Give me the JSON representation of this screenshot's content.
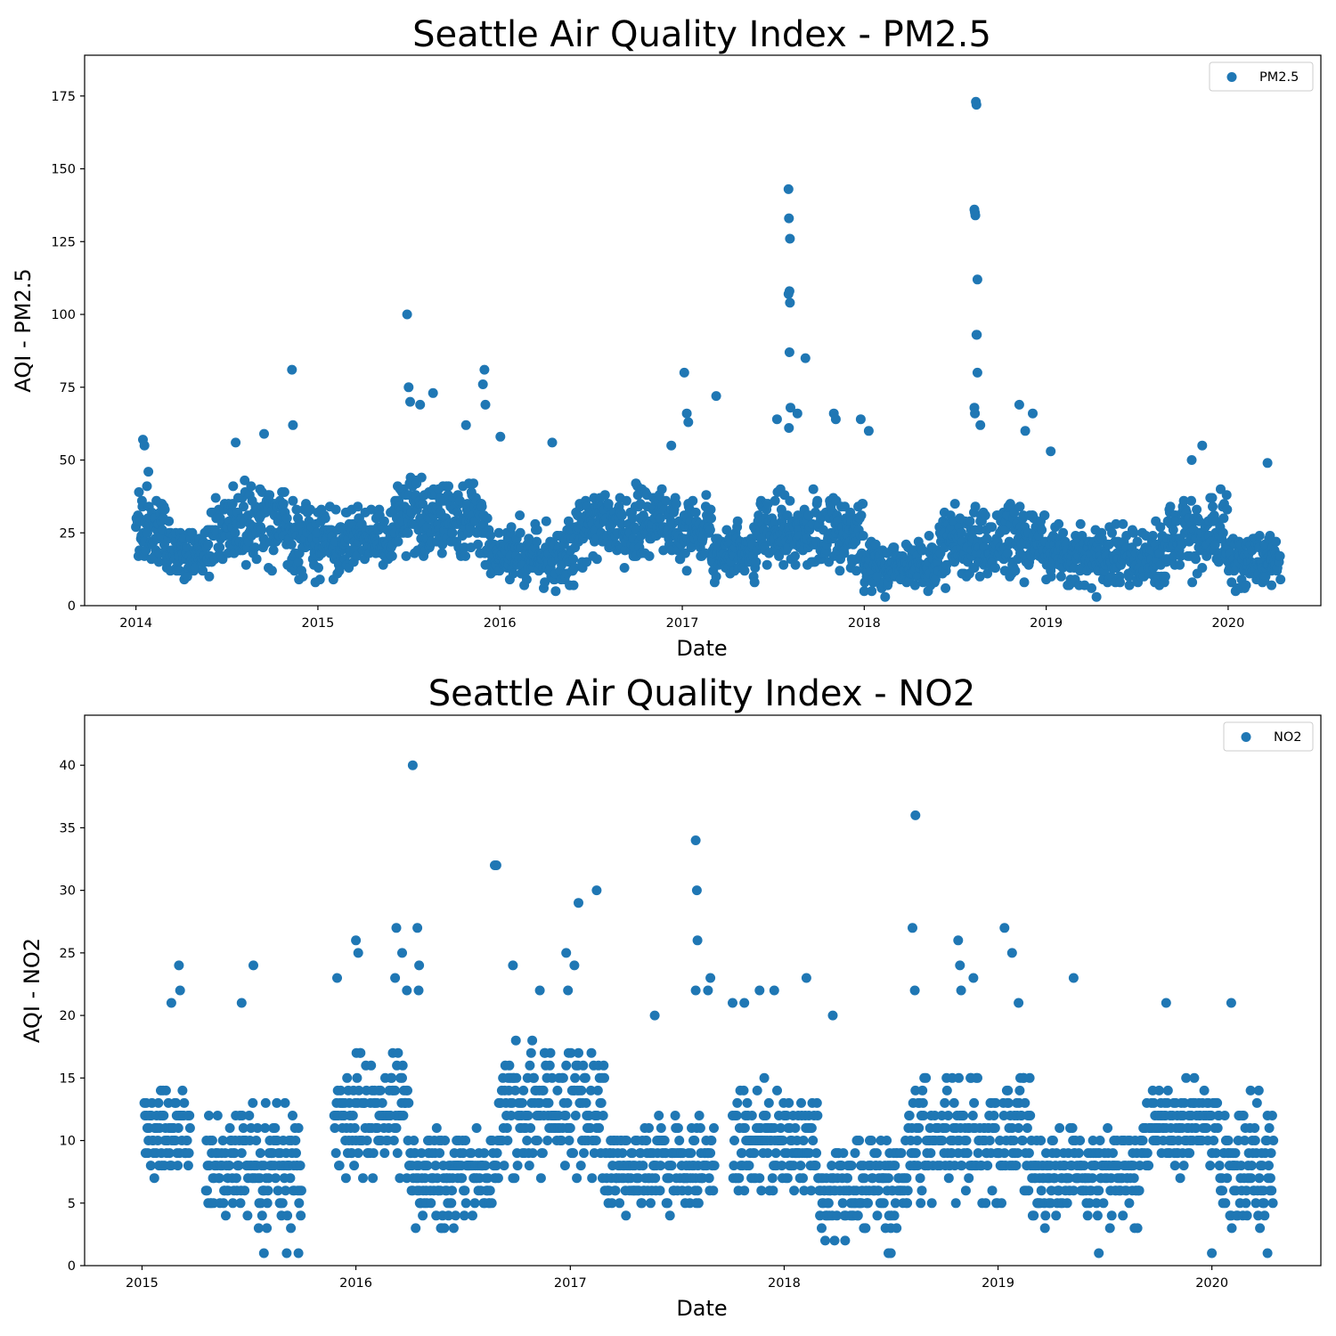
{
  "chart_data": [
    {
      "type": "scatter",
      "title": "Seattle Air Quality Index - PM2.5",
      "xlabel": "Date",
      "ylabel": "AQI - PM2.5",
      "xlim": [
        "2013-09-20",
        "2020-07-05"
      ],
      "ylim": [
        0,
        189
      ],
      "x_ticks": [
        "2014",
        "2015",
        "2016",
        "2017",
        "2018",
        "2019",
        "2020"
      ],
      "y_ticks": [
        0,
        25,
        50,
        75,
        100,
        125,
        150,
        175
      ],
      "legend": "upper right",
      "grid": false,
      "colors": {
        "marker": "#1f77b4"
      },
      "series": [
        {
          "name": "PM2.5",
          "color": "#1f77b4",
          "marker_radius": 5.5,
          "x_start": "2014-01-01",
          "x_end": "2020-04-15",
          "seed": 20140101,
          "baseline_segments": [
            {
              "from": "2014-01-01",
              "to": "2014-03-01",
              "mean": 28,
              "spread": 12
            },
            {
              "from": "2014-03-01",
              "to": "2014-06-01",
              "mean": 18,
              "spread": 8
            },
            {
              "from": "2014-06-01",
              "to": "2014-11-01",
              "mean": 28,
              "spread": 11
            },
            {
              "from": "2014-11-01",
              "to": "2015-06-01",
              "mean": 22,
              "spread": 10
            },
            {
              "from": "2015-06-01",
              "to": "2015-12-01",
              "mean": 30,
              "spread": 11
            },
            {
              "from": "2015-12-01",
              "to": "2016-06-01",
              "mean": 18,
              "spread": 9
            },
            {
              "from": "2016-06-01",
              "to": "2017-03-01",
              "mean": 27,
              "spread": 10
            },
            {
              "from": "2017-03-01",
              "to": "2017-06-01",
              "mean": 18,
              "spread": 7
            },
            {
              "from": "2017-06-01",
              "to": "2018-01-01",
              "mean": 25,
              "spread": 10
            },
            {
              "from": "2018-01-01",
              "to": "2018-06-01",
              "mean": 14,
              "spread": 7
            },
            {
              "from": "2018-06-01",
              "to": "2019-01-01",
              "mean": 22,
              "spread": 10
            },
            {
              "from": "2019-01-01",
              "to": "2019-09-01",
              "mean": 17,
              "spread": 8
            },
            {
              "from": "2019-09-01",
              "to": "2020-01-01",
              "mean": 25,
              "spread": 11
            },
            {
              "from": "2020-01-01",
              "to": "2020-04-15",
              "mean": 16,
              "spread": 8
            }
          ],
          "points": [
            {
              "x": "2014-01-15",
              "y": 57
            },
            {
              "x": "2014-01-18",
              "y": 55
            },
            {
              "x": "2014-07-20",
              "y": 56
            },
            {
              "x": "2014-09-15",
              "y": 59
            },
            {
              "x": "2014-11-10",
              "y": 81
            },
            {
              "x": "2014-11-12",
              "y": 62
            },
            {
              "x": "2015-06-29",
              "y": 100
            },
            {
              "x": "2015-07-02",
              "y": 75
            },
            {
              "x": "2015-07-05",
              "y": 70
            },
            {
              "x": "2015-07-25",
              "y": 69
            },
            {
              "x": "2015-08-20",
              "y": 73
            },
            {
              "x": "2015-10-25",
              "y": 62
            },
            {
              "x": "2015-11-28",
              "y": 76
            },
            {
              "x": "2015-12-01",
              "y": 81
            },
            {
              "x": "2015-12-03",
              "y": 69
            },
            {
              "x": "2016-01-02",
              "y": 58
            },
            {
              "x": "2016-04-15",
              "y": 56
            },
            {
              "x": "2016-12-10",
              "y": 55
            },
            {
              "x": "2017-01-05",
              "y": 80
            },
            {
              "x": "2017-01-10",
              "y": 66
            },
            {
              "x": "2017-01-13",
              "y": 63
            },
            {
              "x": "2017-03-10",
              "y": 72
            },
            {
              "x": "2017-07-10",
              "y": 64
            },
            {
              "x": "2017-08-02",
              "y": 143
            },
            {
              "x": "2017-08-03",
              "y": 133
            },
            {
              "x": "2017-08-05",
              "y": 126
            },
            {
              "x": "2017-08-04",
              "y": 108
            },
            {
              "x": "2017-08-02",
              "y": 107
            },
            {
              "x": "2017-08-05",
              "y": 104
            },
            {
              "x": "2017-08-04",
              "y": 87
            },
            {
              "x": "2017-08-06",
              "y": 68
            },
            {
              "x": "2017-08-03",
              "y": 61
            },
            {
              "x": "2017-08-20",
              "y": 66
            },
            {
              "x": "2017-09-05",
              "y": 85
            },
            {
              "x": "2017-11-01",
              "y": 66
            },
            {
              "x": "2017-11-05",
              "y": 64
            },
            {
              "x": "2017-12-25",
              "y": 64
            },
            {
              "x": "2018-01-10",
              "y": 60
            },
            {
              "x": "2018-08-13",
              "y": 173
            },
            {
              "x": "2018-08-14",
              "y": 172
            },
            {
              "x": "2018-08-10",
              "y": 136
            },
            {
              "x": "2018-08-11",
              "y": 135
            },
            {
              "x": "2018-08-12",
              "y": 134
            },
            {
              "x": "2018-08-16",
              "y": 112
            },
            {
              "x": "2018-08-14",
              "y": 93
            },
            {
              "x": "2018-08-15",
              "y": 93
            },
            {
              "x": "2018-08-16",
              "y": 80
            },
            {
              "x": "2018-08-10",
              "y": 68
            },
            {
              "x": "2018-08-11",
              "y": 66
            },
            {
              "x": "2018-08-22",
              "y": 62
            },
            {
              "x": "2018-11-08",
              "y": 69
            },
            {
              "x": "2018-11-20",
              "y": 60
            },
            {
              "x": "2018-12-05",
              "y": 66
            },
            {
              "x": "2019-01-10",
              "y": 53
            },
            {
              "x": "2019-10-20",
              "y": 50
            },
            {
              "x": "2019-11-10",
              "y": 55
            },
            {
              "x": "2020-03-20",
              "y": 49
            },
            {
              "x": "2018-02-12",
              "y": 3
            },
            {
              "x": "2019-04-12",
              "y": 3
            },
            {
              "x": "2020-03-28",
              "y": 7
            }
          ]
        }
      ]
    },
    {
      "type": "scatter",
      "title": "Seattle Air Quality Index - NO2",
      "xlabel": "Date",
      "ylabel": "AQI - NO2",
      "xlim": [
        "2014-09-25",
        "2020-07-05"
      ],
      "ylim": [
        0,
        44
      ],
      "x_ticks": [
        "2015",
        "2016",
        "2017",
        "2018",
        "2019",
        "2020"
      ],
      "y_ticks": [
        0,
        5,
        10,
        15,
        20,
        25,
        30,
        35,
        40
      ],
      "legend": "upper right",
      "grid": false,
      "colors": {
        "marker": "#1f77b4"
      },
      "series": [
        {
          "name": "NO2",
          "color": "#1f77b4",
          "marker_radius": 5.5,
          "x_start": "2015-01-05",
          "x_end": "2020-04-15",
          "seed": 20150105,
          "gaps": [
            [
              "2015-03-25",
              "2015-04-20"
            ],
            [
              "2015-10-01",
              "2015-11-25"
            ],
            [
              "2017-09-05",
              "2017-10-05"
            ]
          ],
          "baseline_segments": [
            {
              "from": "2015-01-05",
              "to": "2015-03-25",
              "mean": 11,
              "spread": 3
            },
            {
              "from": "2015-04-20",
              "to": "2015-10-01",
              "mean": 8,
              "spread": 4
            },
            {
              "from": "2015-11-25",
              "to": "2016-04-01",
              "mean": 12,
              "spread": 4
            },
            {
              "from": "2016-04-01",
              "to": "2016-09-01",
              "mean": 7,
              "spread": 3
            },
            {
              "from": "2016-09-01",
              "to": "2017-03-01",
              "mean": 12,
              "spread": 4
            },
            {
              "from": "2017-03-01",
              "to": "2017-09-05",
              "mean": 8,
              "spread": 3
            },
            {
              "from": "2017-10-05",
              "to": "2018-03-01",
              "mean": 10,
              "spread": 4
            },
            {
              "from": "2018-03-01",
              "to": "2018-08-01",
              "mean": 6,
              "spread": 3
            },
            {
              "from": "2018-08-01",
              "to": "2019-03-01",
              "mean": 10,
              "spread": 4
            },
            {
              "from": "2019-03-01",
              "to": "2019-09-01",
              "mean": 7,
              "spread": 3
            },
            {
              "from": "2019-09-01",
              "to": "2020-01-15",
              "mean": 11,
              "spread": 3
            },
            {
              "from": "2020-01-15",
              "to": "2020-04-15",
              "mean": 8,
              "spread": 4
            }
          ],
          "points": [
            {
              "x": "2016-04-07",
              "y": 40
            },
            {
              "x": "2018-08-13",
              "y": 36
            },
            {
              "x": "2017-08-03",
              "y": 34
            },
            {
              "x": "2016-08-25",
              "y": 32
            },
            {
              "x": "2016-08-28",
              "y": 32
            },
            {
              "x": "2017-08-05",
              "y": 30
            },
            {
              "x": "2017-02-15",
              "y": 30
            },
            {
              "x": "2017-01-15",
              "y": 29
            },
            {
              "x": "2016-03-10",
              "y": 27
            },
            {
              "x": "2016-04-15",
              "y": 27
            },
            {
              "x": "2018-08-08",
              "y": 27
            },
            {
              "x": "2019-01-12",
              "y": 27
            },
            {
              "x": "2016-01-01",
              "y": 26
            },
            {
              "x": "2017-08-06",
              "y": 26
            },
            {
              "x": "2018-10-25",
              "y": 26
            },
            {
              "x": "2016-01-05",
              "y": 25
            },
            {
              "x": "2016-03-20",
              "y": 25
            },
            {
              "x": "2016-12-25",
              "y": 25
            },
            {
              "x": "2019-01-25",
              "y": 25
            },
            {
              "x": "2015-03-05",
              "y": 24
            },
            {
              "x": "2015-07-10",
              "y": 24
            },
            {
              "x": "2016-04-18",
              "y": 24
            },
            {
              "x": "2016-09-25",
              "y": 24
            },
            {
              "x": "2017-01-08",
              "y": 24
            },
            {
              "x": "2018-10-28",
              "y": 24
            },
            {
              "x": "2015-11-30",
              "y": 23
            },
            {
              "x": "2016-03-08",
              "y": 23
            },
            {
              "x": "2017-08-28",
              "y": 23
            },
            {
              "x": "2018-02-08",
              "y": 23
            },
            {
              "x": "2018-11-20",
              "y": 23
            },
            {
              "x": "2019-05-10",
              "y": 23
            },
            {
              "x": "2015-03-07",
              "y": 22
            },
            {
              "x": "2016-03-28",
              "y": 22
            },
            {
              "x": "2016-04-17",
              "y": 22
            },
            {
              "x": "2016-11-10",
              "y": 22
            },
            {
              "x": "2016-12-28",
              "y": 22
            },
            {
              "x": "2017-08-03",
              "y": 22
            },
            {
              "x": "2017-08-24",
              "y": 22
            },
            {
              "x": "2017-11-20",
              "y": 22
            },
            {
              "x": "2017-12-15",
              "y": 22
            },
            {
              "x": "2018-08-12",
              "y": 22
            },
            {
              "x": "2018-10-30",
              "y": 22
            },
            {
              "x": "2015-02-20",
              "y": 21
            },
            {
              "x": "2015-06-20",
              "y": 21
            },
            {
              "x": "2017-10-05",
              "y": 21
            },
            {
              "x": "2017-10-25",
              "y": 21
            },
            {
              "x": "2019-02-05",
              "y": 21
            },
            {
              "x": "2019-10-15",
              "y": 21
            },
            {
              "x": "2020-02-03",
              "y": 21
            },
            {
              "x": "2017-05-25",
              "y": 20
            },
            {
              "x": "2018-03-25",
              "y": 20
            },
            {
              "x": "2015-07-28",
              "y": 1
            },
            {
              "x": "2015-09-05",
              "y": 1
            },
            {
              "x": "2015-09-25",
              "y": 1
            },
            {
              "x": "2018-06-28",
              "y": 1
            },
            {
              "x": "2018-07-02",
              "y": 1
            },
            {
              "x": "2019-06-22",
              "y": 1
            },
            {
              "x": "2020-01-01",
              "y": 1
            },
            {
              "x": "2020-04-05",
              "y": 1
            }
          ]
        }
      ]
    }
  ]
}
